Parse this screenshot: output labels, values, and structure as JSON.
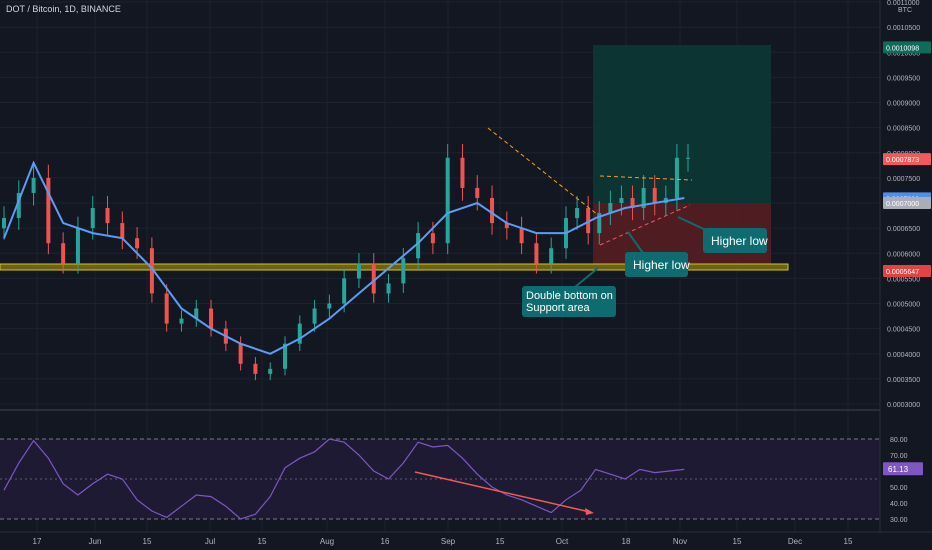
{
  "symbol_title": "DOT / Bitcoin, 1D, BINANCE",
  "price_axis": {
    "unit": "BTC",
    "ticks": [
      "0.0011000",
      "0.0010500",
      "0.0010000",
      "0.0009500",
      "0.0009000",
      "0.0008500",
      "0.0008000",
      "0.0007500",
      "0.0007000",
      "0.0006500",
      "0.0006000",
      "0.0005500",
      "0.0005000",
      "0.0004500",
      "0.0004000",
      "0.0003500",
      "0.0003000"
    ],
    "tags": [
      {
        "text": "0.0010098",
        "value": 0.0010098,
        "color": "#0f6b5c"
      },
      {
        "text": "0.0007873",
        "value": 0.0007873,
        "color": "#f05a5a"
      },
      {
        "text": "0.0007092",
        "value": 0.0007092,
        "color": "#4e8fe8"
      },
      {
        "text": "0.0007000",
        "value": 0.0007,
        "color": "#a8adb8"
      },
      {
        "text": "0.0005647",
        "value": 0.0005647,
        "color": "#e04444"
      }
    ]
  },
  "time_axis": [
    "17",
    "Jun",
    "15",
    "Jul",
    "15",
    "Aug",
    "16",
    "Sep",
    "15",
    "Oct",
    "18",
    "Nov",
    "15",
    "Dec",
    "15"
  ],
  "rsi_axis": {
    "ticks": [
      "80.00",
      "70.00",
      "50.00",
      "40.00",
      "30.00"
    ],
    "tag": {
      "text": "61.13",
      "value": 61.13,
      "color": "#7e57c2"
    }
  },
  "annotations": [
    {
      "text": "Higher low"
    },
    {
      "text": "Higher low"
    },
    {
      "text": "Double bottom on Support area"
    }
  ],
  "colors": {
    "up": "#26a69a",
    "down": "#ef5350",
    "ma": "#5b9cf6",
    "rsi": "#7e57c2",
    "support": "#d4c419"
  },
  "chart_data": {
    "type": "candlestick",
    "price_range": [
      0.0003,
      0.0011
    ],
    "rsi_range": [
      30,
      80
    ],
    "support_zone": [
      0.0005647,
      0.00057
    ],
    "position": {
      "entry": 0.0007,
      "target": 0.0010098,
      "stop": 0.0005647
    },
    "price_series": {
      "name": "DOT/BTC",
      "x": [
        0,
        4,
        8,
        12,
        16,
        20,
        24,
        28,
        32,
        36,
        40,
        44,
        48,
        52,
        56,
        60,
        64,
        68,
        72,
        76,
        80,
        84,
        88,
        92,
        96,
        100,
        104,
        108,
        112,
        116,
        120,
        124,
        128,
        132,
        136,
        140,
        144,
        148,
        152,
        155,
        158,
        161,
        164,
        167,
        170,
        173,
        176,
        179,
        182,
        185
      ],
      "close": [
        0.00067,
        0.00072,
        0.00075,
        0.00062,
        0.00058,
        0.00065,
        0.00069,
        0.00066,
        0.00063,
        0.00061,
        0.00052,
        0.00046,
        0.00047,
        0.00049,
        0.00045,
        0.00042,
        0.00038,
        0.00036,
        0.00037,
        0.00042,
        0.00046,
        0.00049,
        0.0005,
        0.00055,
        0.00058,
        0.00052,
        0.00054,
        0.00059,
        0.00064,
        0.00062,
        0.00079,
        0.00073,
        0.00071,
        0.00066,
        0.00065,
        0.00062,
        0.00058,
        0.00061,
        0.00067,
        0.00069,
        0.00064,
        0.00068,
        0.0007,
        0.00071,
        0.00069,
        0.00073,
        0.0007,
        0.00071,
        0.00079,
        0.00079
      ]
    },
    "ma_series": {
      "x": [
        0,
        8,
        16,
        24,
        32,
        40,
        48,
        56,
        64,
        72,
        80,
        88,
        96,
        104,
        112,
        120,
        128,
        136,
        144,
        152,
        160,
        168,
        176,
        184
      ],
      "y": [
        0.00063,
        0.00078,
        0.00066,
        0.00064,
        0.00063,
        0.00057,
        0.00049,
        0.00045,
        0.00042,
        0.0004,
        0.00043,
        0.00047,
        0.00052,
        0.00057,
        0.00062,
        0.00068,
        0.0007,
        0.00066,
        0.00064,
        0.00064,
        0.00067,
        0.00069,
        0.0007,
        0.00071
      ]
    },
    "rsi_series": {
      "x": [
        0,
        4,
        8,
        12,
        16,
        20,
        24,
        28,
        32,
        36,
        40,
        44,
        48,
        52,
        56,
        60,
        64,
        68,
        72,
        76,
        80,
        84,
        88,
        92,
        96,
        100,
        104,
        108,
        112,
        116,
        120,
        124,
        128,
        132,
        136,
        140,
        144,
        148,
        152,
        156,
        160,
        164,
        168,
        172,
        176,
        180,
        184
      ],
      "y": [
        48,
        65,
        79,
        68,
        52,
        45,
        52,
        58,
        55,
        42,
        35,
        31,
        38,
        45,
        44,
        38,
        30,
        33,
        44,
        62,
        68,
        72,
        80,
        78,
        70,
        60,
        55,
        65,
        78,
        75,
        76,
        68,
        58,
        50,
        45,
        42,
        38,
        34,
        42,
        48,
        61,
        58,
        55,
        61,
        59,
        60,
        61
      ]
    }
  }
}
